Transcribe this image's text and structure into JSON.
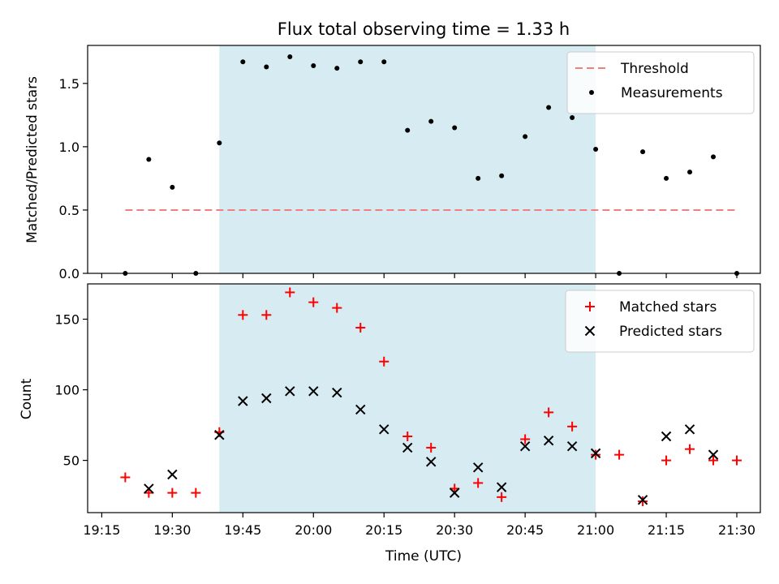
{
  "chart_data": [
    {
      "type": "scatter",
      "title": "Flux total observing time = 1.33 h",
      "xlabel": "",
      "ylabel": "Matched/Predicted stars",
      "xlim": [
        "19:12",
        "21:35"
      ],
      "ylim": [
        0,
        1.8
      ],
      "yticks": [
        "0.0",
        "0.5",
        "1.0",
        "1.5"
      ],
      "shaded_region": [
        "19:40",
        "21:00"
      ],
      "shade_color": "#add8e6",
      "threshold": {
        "name": "Threshold",
        "value": 0.5,
        "x_range": [
          "19:20",
          "21:30"
        ],
        "color": "#f08080"
      },
      "legend": {
        "position": "top-right",
        "entries": [
          "Threshold",
          "Measurements"
        ]
      },
      "series": [
        {
          "name": "Measurements",
          "color": "#000000",
          "marker": "dot",
          "x": [
            "19:20",
            "19:25",
            "19:30",
            "19:35",
            "19:40",
            "19:45",
            "19:50",
            "19:55",
            "20:00",
            "20:05",
            "20:10",
            "20:15",
            "20:20",
            "20:25",
            "20:30",
            "20:35",
            "20:40",
            "20:45",
            "20:50",
            "20:55",
            "21:00",
            "21:05",
            "21:10",
            "21:15",
            "21:20",
            "21:25",
            "21:30"
          ],
          "values": [
            0.0,
            0.9,
            0.68,
            0.0,
            1.03,
            1.67,
            1.63,
            1.71,
            1.64,
            1.62,
            1.67,
            1.67,
            1.13,
            1.2,
            1.15,
            0.75,
            0.77,
            1.08,
            1.31,
            1.23,
            0.98,
            0.0,
            0.96,
            0.75,
            0.8,
            0.92,
            0.0
          ]
        }
      ]
    },
    {
      "type": "scatter",
      "title": "",
      "xlabel": "Time (UTC)",
      "ylabel": "Count",
      "xlim": [
        "19:12",
        "21:35"
      ],
      "ylim": [
        13,
        175
      ],
      "yticks": [
        "50",
        "100",
        "150"
      ],
      "xticks": [
        "19:15",
        "19:30",
        "19:45",
        "20:00",
        "20:15",
        "20:30",
        "20:45",
        "21:00",
        "21:15",
        "21:30"
      ],
      "shaded_region": [
        "19:40",
        "21:00"
      ],
      "shade_color": "#add8e6",
      "legend": {
        "position": "top-right",
        "entries": [
          "Matched stars",
          "Predicted stars"
        ]
      },
      "series": [
        {
          "name": "Matched stars",
          "color": "#ff0000",
          "marker": "plus",
          "x": [
            "19:20",
            "19:25",
            "19:30",
            "19:35",
            "19:40",
            "19:45",
            "19:50",
            "19:55",
            "20:00",
            "20:05",
            "20:10",
            "20:15",
            "20:20",
            "20:25",
            "20:30",
            "20:35",
            "20:40",
            "20:45",
            "20:50",
            "20:55",
            "21:00",
            "21:05",
            "21:10",
            "21:15",
            "21:20",
            "21:25",
            "21:30"
          ],
          "values": [
            38,
            27,
            27,
            27,
            70,
            153,
            153,
            169,
            162,
            158,
            144,
            120,
            67,
            59,
            30,
            34,
            24,
            65,
            84,
            74,
            54,
            54,
            21,
            50,
            58,
            50,
            50
          ]
        },
        {
          "name": "Predicted stars",
          "color": "#000000",
          "marker": "x",
          "x": [
            "19:25",
            "19:30",
            "19:40",
            "19:45",
            "19:50",
            "19:55",
            "20:00",
            "20:05",
            "20:10",
            "20:15",
            "20:20",
            "20:25",
            "20:30",
            "20:35",
            "20:40",
            "20:45",
            "20:50",
            "20:55",
            "21:00",
            "21:10",
            "21:15",
            "21:20",
            "21:25"
          ],
          "values": [
            30,
            40,
            68,
            92,
            94,
            99,
            99,
            98,
            86,
            72,
            59,
            49,
            27,
            45,
            31,
            60,
            64,
            60,
            55,
            22,
            67,
            72,
            54
          ]
        }
      ]
    }
  ]
}
